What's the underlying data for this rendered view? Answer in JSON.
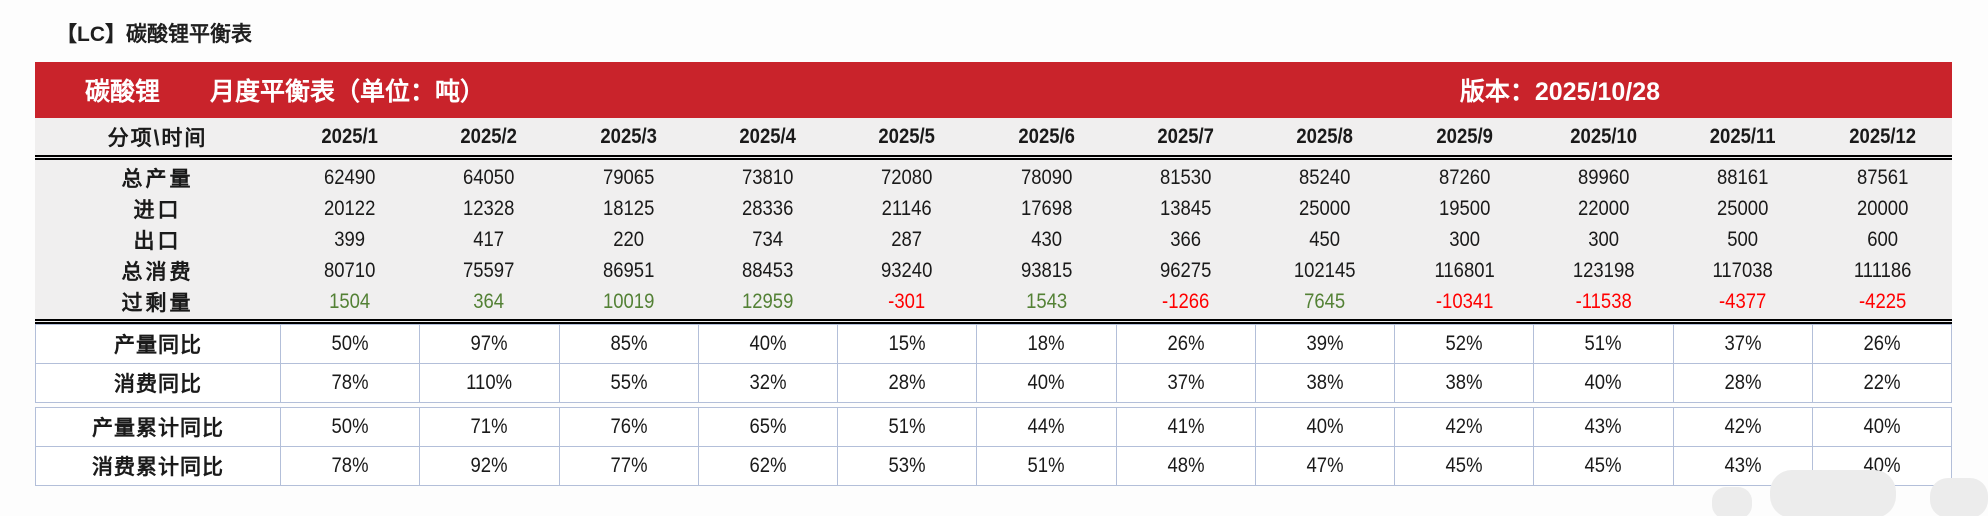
{
  "page_title": "【LC】碳酸锂平衡表",
  "banner": {
    "product": "碳酸锂",
    "table_name": "月度平衡表（单位：吨）",
    "version": "版本：2025/10/28"
  },
  "colors": {
    "banner_red": "#C9232B",
    "positive_green": "#538135",
    "negative_red": "#FF0000",
    "section_bg": "#F0EFEF",
    "grid_line": "#B3BFD9"
  },
  "chart_data": {
    "type": "table",
    "title": "碳酸锂 月度平衡表（单位：吨）",
    "version_date": "2025/10/28",
    "corner_header": "分项\\时间",
    "columns": [
      "2025/1",
      "2025/2",
      "2025/3",
      "2025/4",
      "2025/5",
      "2025/6",
      "2025/7",
      "2025/8",
      "2025/9",
      "2025/10",
      "2025/11",
      "2025/12"
    ],
    "balance_rows": [
      {
        "label": "总产量",
        "colored": false,
        "values": [
          62490,
          64050,
          79065,
          73810,
          72080,
          78090,
          81530,
          85240,
          87260,
          89960,
          88161,
          87561
        ]
      },
      {
        "label": "进口",
        "colored": false,
        "values": [
          20122,
          12328,
          18125,
          28336,
          21146,
          17698,
          13845,
          25000,
          19500,
          22000,
          25000,
          20000
        ]
      },
      {
        "label": "出口",
        "colored": false,
        "values": [
          399,
          417,
          220,
          734,
          287,
          430,
          366,
          450,
          300,
          300,
          500,
          600
        ]
      },
      {
        "label": "总消费",
        "colored": false,
        "values": [
          80710,
          75597,
          86951,
          88453,
          93240,
          93815,
          96275,
          102145,
          116801,
          123198,
          117038,
          111186
        ]
      },
      {
        "label": "过剩量",
        "colored": true,
        "values": [
          1504,
          364,
          10019,
          12959,
          -301,
          1543,
          -1266,
          7645,
          -10341,
          -11538,
          -4377,
          -4225
        ]
      }
    ],
    "ratio_groups": [
      [
        {
          "label": "产量同比",
          "values": [
            "50%",
            "97%",
            "85%",
            "40%",
            "15%",
            "18%",
            "26%",
            "39%",
            "52%",
            "51%",
            "37%",
            "26%"
          ]
        },
        {
          "label": "消费同比",
          "values": [
            "78%",
            "110%",
            "55%",
            "32%",
            "28%",
            "40%",
            "37%",
            "38%",
            "38%",
            "40%",
            "28%",
            "22%"
          ]
        }
      ],
      [
        {
          "label": "产量累计同比",
          "values": [
            "50%",
            "71%",
            "76%",
            "65%",
            "51%",
            "44%",
            "41%",
            "40%",
            "42%",
            "43%",
            "42%",
            "40%"
          ]
        },
        {
          "label": "消费累计同比",
          "values": [
            "78%",
            "92%",
            "77%",
            "62%",
            "53%",
            "51%",
            "48%",
            "47%",
            "45%",
            "45%",
            "43%",
            "40%"
          ]
        }
      ]
    ]
  }
}
